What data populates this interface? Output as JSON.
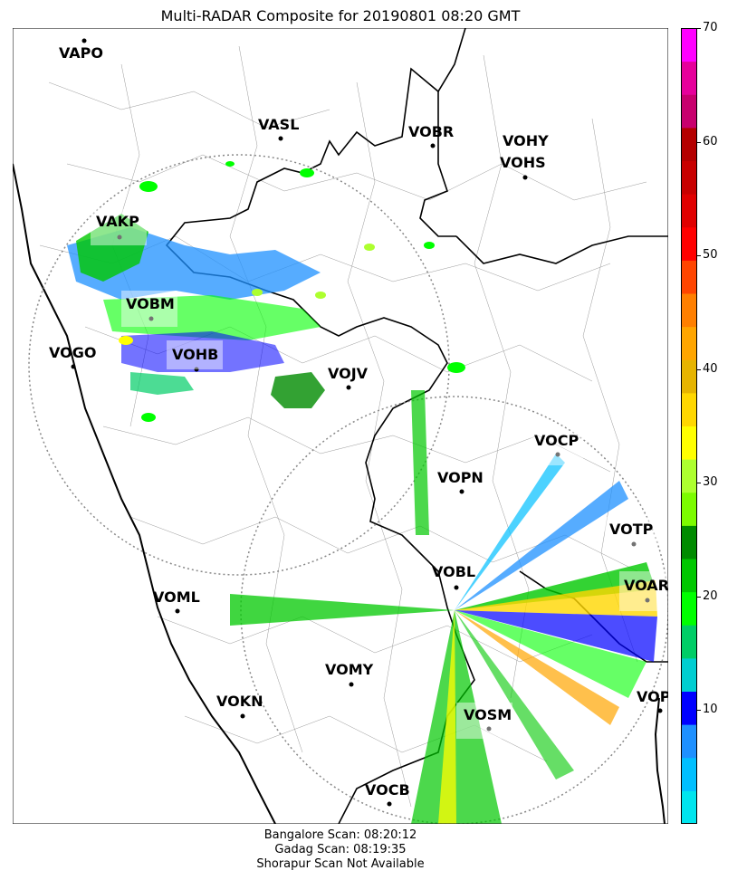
{
  "title": "Multi-RADAR Composite for 20190801 08:20 GMT",
  "stations": [
    {
      "code": "VAPO"
    },
    {
      "code": "VASL"
    },
    {
      "code": "VOBR"
    },
    {
      "code": "VOHY"
    },
    {
      "code": "VOHS"
    },
    {
      "code": "VAKP"
    },
    {
      "code": "VOBM"
    },
    {
      "code": "VOGO"
    },
    {
      "code": "VOHB"
    },
    {
      "code": "VOJV"
    },
    {
      "code": "VOCP"
    },
    {
      "code": "VOPN"
    },
    {
      "code": "VOTP"
    },
    {
      "code": "VOBL"
    },
    {
      "code": "VOAR"
    },
    {
      "code": "VOML"
    },
    {
      "code": "VOMY"
    },
    {
      "code": "VOKN"
    },
    {
      "code": "VOPC"
    },
    {
      "code": "VOSM"
    },
    {
      "code": "VOCB"
    }
  ],
  "colorbar": {
    "min": 0,
    "max": 70,
    "ticks": [
      "10",
      "20",
      "30",
      "40",
      "50",
      "60",
      "70"
    ],
    "colors": [
      "#00e5ee",
      "#00bfff",
      "#1e90ff",
      "#0000ff",
      "#00ced1",
      "#00cd66",
      "#00ff00",
      "#00c800",
      "#008b00",
      "#7cfc00",
      "#adff2f",
      "#ffff00",
      "#ffd700",
      "#e6b400",
      "#ffa500",
      "#ff7f00",
      "#ff4500",
      "#ff0000",
      "#e00000",
      "#c80000",
      "#b40000",
      "#c8006e",
      "#e6009b",
      "#ff00ff"
    ]
  },
  "footer": {
    "line1": "Bangalore Scan: 08:20:12",
    "line2": "Gadag Scan: 08:19:35",
    "line3": "Shorapur Scan Not Available"
  }
}
